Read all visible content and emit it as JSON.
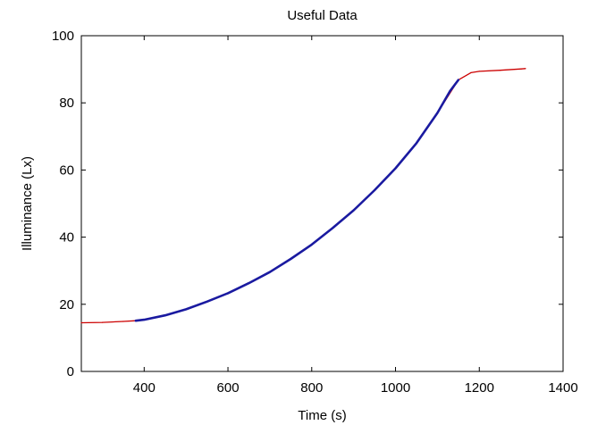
{
  "chart_data": {
    "type": "line",
    "title": "Useful Data",
    "xlabel": "Time (s)",
    "ylabel": "Illuminance (Lx)",
    "xlim": [
      250,
      1400
    ],
    "ylim": [
      0,
      100
    ],
    "x_ticks": [
      400,
      600,
      800,
      1000,
      1200,
      1400
    ],
    "y_ticks": [
      0,
      20,
      40,
      60,
      80,
      100
    ],
    "grid": false,
    "legend": "none",
    "series": [
      {
        "color": "#cc0000",
        "x": [
          250,
          300,
          350,
          380,
          400,
          450,
          500,
          550,
          600,
          650,
          700,
          750,
          800,
          850,
          900,
          950,
          1000,
          1050,
          1100,
          1150,
          1180,
          1200,
          1250,
          1300,
          1310
        ],
        "y": [
          14.5,
          14.6,
          14.9,
          15.1,
          15.4,
          16.7,
          18.5,
          20.8,
          23.3,
          26.3,
          29.6,
          33.5,
          37.8,
          42.7,
          48.0,
          54.0,
          60.5,
          68.0,
          77.0,
          86.8,
          89.0,
          89.4,
          89.7,
          90.1,
          90.2
        ]
      },
      {
        "color": "#1a1aa0",
        "x": [
          380,
          400,
          450,
          500,
          550,
          600,
          650,
          700,
          750,
          800,
          850,
          900,
          950,
          1000,
          1050,
          1100,
          1130,
          1150
        ],
        "y": [
          15.1,
          15.4,
          16.7,
          18.5,
          20.8,
          23.3,
          26.3,
          29.6,
          33.5,
          37.8,
          42.7,
          48.0,
          54.0,
          60.5,
          68.0,
          77.0,
          83.5,
          86.8
        ]
      }
    ]
  }
}
